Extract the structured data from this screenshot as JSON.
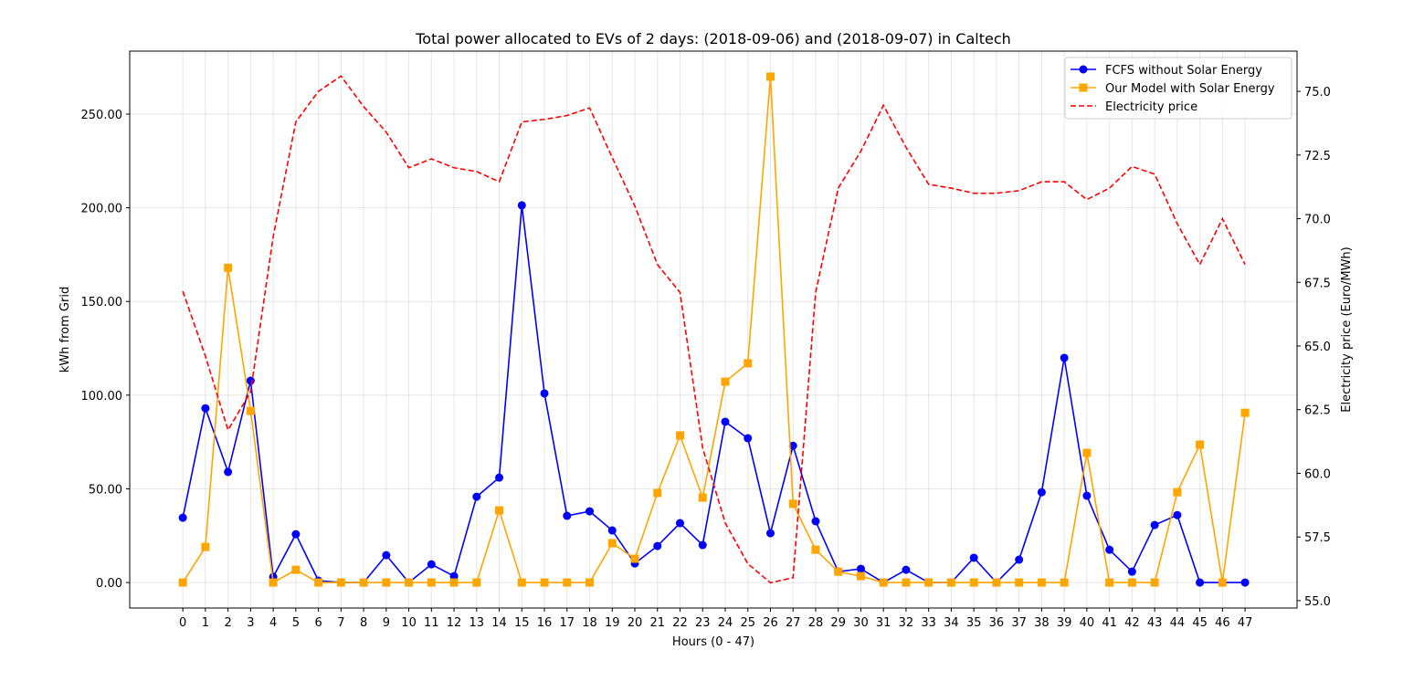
{
  "chart_data": {
    "type": "line",
    "title": "Total power allocated to EVs of 2 days: (2018-09-06) and (2018-09-07) in Caltech",
    "xlabel": "Hours (0 - 47)",
    "ylabel": "kWh from Grid",
    "ylabel_right": "Electricity price (Euro/MWh)",
    "xlim": [
      -2.35,
      49.3
    ],
    "ylim": [
      -13.6,
      283.6
    ],
    "ylim_right": [
      54.71,
      76.58
    ],
    "grid": true,
    "legend_position": "top-right",
    "x": [
      0,
      1,
      2,
      3,
      4,
      5,
      6,
      7,
      8,
      9,
      10,
      11,
      12,
      13,
      14,
      15,
      16,
      17,
      18,
      19,
      20,
      21,
      22,
      23,
      24,
      25,
      26,
      27,
      28,
      29,
      30,
      31,
      32,
      33,
      34,
      35,
      36,
      37,
      38,
      39,
      40,
      41,
      42,
      43,
      44,
      45,
      46,
      47
    ],
    "yticks": [
      0,
      50,
      100,
      150,
      200,
      250
    ],
    "ytick_labels": [
      "0.00",
      "50.00",
      "100.00",
      "150.00",
      "200.00",
      "250.00"
    ],
    "yticks_right": [
      55.0,
      57.5,
      60.0,
      62.5,
      65.0,
      67.5,
      70.0,
      72.5,
      75.0
    ],
    "ytick_labels_right": [
      "55.0",
      "57.5",
      "60.0",
      "62.5",
      "65.0",
      "67.5",
      "70.0",
      "72.5",
      "75.0"
    ],
    "series": [
      {
        "name": "FCFS without Solar Energy",
        "axis": "left",
        "color": "#0000ff",
        "marker": "circle",
        "style": "solid",
        "values": [
          34.6,
          93,
          59,
          107.7,
          3,
          25.8,
          1,
          0,
          0,
          14.6,
          0,
          9.7,
          3.4,
          45.8,
          56,
          201.3,
          100.9,
          35.6,
          38,
          27.8,
          10.2,
          19.5,
          31.7,
          20,
          85.8,
          77,
          26.3,
          73,
          32.7,
          5.8,
          7.3,
          0,
          6.8,
          0,
          0,
          13.2,
          0,
          12.2,
          48.2,
          119.9,
          46.3,
          17.5,
          5.8,
          30.7,
          36,
          0,
          0,
          0
        ]
      },
      {
        "name": "Our Model with Solar Energy",
        "axis": "left",
        "color": "#ffa500",
        "marker": "square",
        "style": "solid",
        "values": [
          0,
          19,
          168,
          91.6,
          0,
          6.8,
          0,
          0,
          0,
          0,
          0,
          0,
          0,
          0,
          38.5,
          0,
          0,
          0,
          0,
          21,
          12.7,
          47.8,
          78.5,
          45.3,
          107.2,
          117,
          270,
          42,
          17.5,
          5.8,
          3.4,
          0,
          0,
          0,
          0,
          0,
          0,
          0,
          0,
          0,
          69.2,
          0,
          0,
          0,
          48.2,
          73.6,
          0,
          90.6
        ]
      },
      {
        "name": "Electricity price",
        "axis": "right",
        "color": "#ff0000",
        "marker": "none",
        "style": "dashed",
        "values": [
          67.15,
          64.6,
          61.7,
          63.2,
          69.3,
          73.8,
          75.0,
          75.6,
          74.4,
          73.4,
          72.0,
          72.35,
          72.0,
          71.85,
          71.45,
          73.8,
          73.9,
          74.05,
          74.35,
          72.4,
          70.5,
          68.2,
          67.1,
          61.0,
          58.05,
          56.45,
          55.7,
          55.9,
          67.1,
          71.2,
          72.65,
          74.45,
          72.8,
          71.35,
          71.2,
          71.0,
          71.0,
          71.1,
          71.45,
          71.45,
          70.75,
          71.2,
          72.05,
          71.75,
          69.8,
          68.2,
          70.0,
          68.2
        ]
      }
    ]
  }
}
